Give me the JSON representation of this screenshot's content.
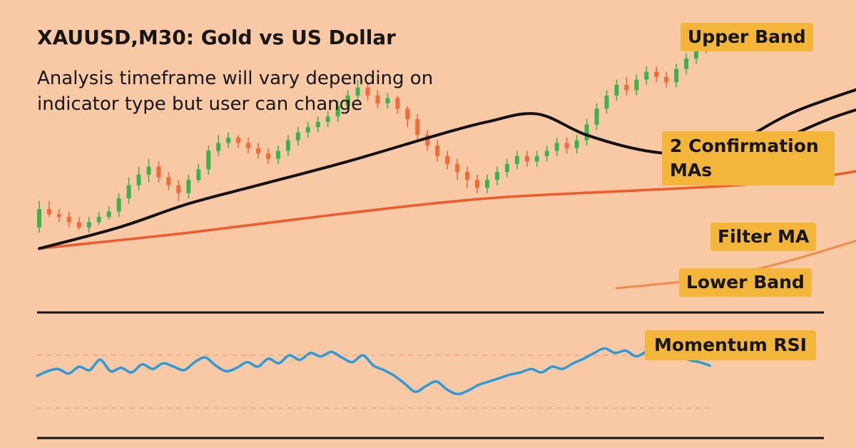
{
  "header": {
    "title": "XAUUSD,M30: Gold vs US Dollar",
    "subtitle": "Analysis timeframe will vary depending on indicator type but user can change"
  },
  "labels": {
    "upper_band": "Upper Band",
    "confirmation_mas": "2 Confirmation MAs",
    "filter_ma": "Filter MA",
    "lower_band": "Lower Band",
    "momentum_rsi": "Momentum RSI"
  },
  "colors": {
    "background": "#f9c9a6",
    "bull": "#3bb34a",
    "bear": "#f26a35",
    "ma": "#111111",
    "filter": "#ef5a2a",
    "lower_band": "#f08a45",
    "rsi": "#2f9ad8",
    "tag": "#f4b63a"
  },
  "chart_data": [
    {
      "type": "candlestick",
      "title": "XAUUSD,M30: Gold vs US Dollar",
      "ylim": [
        0,
        100
      ],
      "candles": [
        [
          26,
          33,
          24,
          36
        ],
        [
          33,
          31,
          30,
          36
        ],
        [
          31,
          30,
          28,
          33
        ],
        [
          30,
          28,
          26,
          32
        ],
        [
          28,
          26,
          25,
          30
        ],
        [
          26,
          28,
          24,
          30
        ],
        [
          28,
          30,
          27,
          32
        ],
        [
          30,
          32,
          29,
          34
        ],
        [
          32,
          37,
          30,
          39
        ],
        [
          37,
          42,
          35,
          45
        ],
        [
          42,
          46,
          40,
          49
        ],
        [
          46,
          49,
          43,
          52
        ],
        [
          49,
          45,
          43,
          51
        ],
        [
          45,
          42,
          40,
          47
        ],
        [
          42,
          39,
          36,
          44
        ],
        [
          39,
          44,
          37,
          46
        ],
        [
          44,
          48,
          43,
          50
        ],
        [
          48,
          55,
          46,
          57
        ],
        [
          55,
          58,
          53,
          61
        ],
        [
          58,
          60,
          56,
          62
        ],
        [
          60,
          58,
          56,
          61
        ],
        [
          58,
          56,
          54,
          60
        ],
        [
          56,
          54,
          52,
          58
        ],
        [
          54,
          52,
          50,
          56
        ],
        [
          52,
          55,
          50,
          57
        ],
        [
          55,
          59,
          53,
          61
        ],
        [
          59,
          62,
          57,
          64
        ],
        [
          62,
          64,
          60,
          66
        ],
        [
          64,
          66,
          62,
          68
        ],
        [
          66,
          68,
          64,
          70
        ],
        [
          68,
          72,
          66,
          74
        ],
        [
          72,
          76,
          70,
          78
        ],
        [
          76,
          79,
          74,
          82
        ],
        [
          79,
          76,
          74,
          81
        ],
        [
          76,
          73,
          71,
          78
        ],
        [
          73,
          75,
          71,
          77
        ],
        [
          75,
          71,
          69,
          76
        ],
        [
          71,
          67,
          64,
          72
        ],
        [
          67,
          61,
          59,
          69
        ],
        [
          61,
          57,
          55,
          63
        ],
        [
          57,
          53,
          51,
          59
        ],
        [
          53,
          50,
          48,
          55
        ],
        [
          50,
          47,
          44,
          52
        ],
        [
          47,
          44,
          41,
          49
        ],
        [
          44,
          41,
          39,
          46
        ],
        [
          41,
          44,
          39,
          46
        ],
        [
          44,
          47,
          42,
          49
        ],
        [
          47,
          50,
          45,
          52
        ],
        [
          50,
          53,
          48,
          55
        ],
        [
          53,
          51,
          49,
          55
        ],
        [
          51,
          53,
          49,
          55
        ],
        [
          53,
          55,
          51,
          57
        ],
        [
          55,
          58,
          53,
          60
        ],
        [
          58,
          56,
          54,
          60
        ],
        [
          56,
          59,
          54,
          61
        ],
        [
          59,
          65,
          57,
          67
        ],
        [
          65,
          71,
          63,
          73
        ],
        [
          71,
          76,
          69,
          78
        ],
        [
          76,
          80,
          74,
          82
        ],
        [
          80,
          78,
          76,
          83
        ],
        [
          78,
          82,
          76,
          84
        ],
        [
          82,
          85,
          80,
          87
        ],
        [
          85,
          83,
          81,
          87
        ],
        [
          83,
          81,
          79,
          85
        ],
        [
          81,
          86,
          79,
          88
        ],
        [
          86,
          90,
          84,
          92
        ],
        [
          90,
          94,
          88,
          96
        ],
        [
          94,
          97,
          92,
          99
        ]
      ]
    },
    {
      "type": "line",
      "series": [
        {
          "role": "confirmation-ma-1",
          "values": [
            [
              0,
              18
            ],
            [
              8,
              26
            ],
            [
              15,
              35
            ],
            [
              22,
              42
            ],
            [
              31,
              51
            ],
            [
              40,
              61
            ],
            [
              45,
              66
            ],
            [
              50,
              69
            ],
            [
              55,
              61
            ],
            [
              61,
              55
            ],
            [
              66,
              54
            ],
            [
              70,
              58
            ],
            [
              76,
              70
            ],
            [
              85,
              82
            ],
            [
              93,
              93
            ]
          ]
        },
        {
          "role": "confirmation-ma-2",
          "values": [
            [
              66,
              47
            ],
            [
              72,
              55
            ],
            [
              80,
              68
            ],
            [
              88,
              77
            ],
            [
              93,
              84
            ]
          ]
        },
        {
          "role": "filter-ma",
          "values": [
            [
              0,
              18
            ],
            [
              15,
              24
            ],
            [
              30,
              31
            ],
            [
              45,
              37
            ],
            [
              60,
              40
            ],
            [
              70,
              42
            ],
            [
              80,
              46
            ],
            [
              88,
              52
            ],
            [
              93,
              58
            ]
          ]
        },
        {
          "role": "lower-band",
          "values": [
            [
              58,
              3
            ],
            [
              68,
              7
            ],
            [
              75,
              13
            ],
            [
              83,
              22
            ],
            [
              90,
              30
            ],
            [
              93,
              34
            ]
          ]
        }
      ]
    },
    {
      "type": "line",
      "title": "Momentum RSI",
      "ylim": [
        0,
        100
      ],
      "series": [
        {
          "role": "rsi",
          "values": [
            52,
            56,
            58,
            54,
            60,
            57,
            66,
            56,
            59,
            55,
            62,
            58,
            63,
            60,
            57,
            64,
            68,
            61,
            56,
            59,
            64,
            60,
            67,
            63,
            70,
            66,
            72,
            69,
            73,
            68,
            64,
            70,
            61,
            57,
            52,
            45,
            38,
            43,
            47,
            40,
            36,
            39,
            44,
            47,
            50,
            53,
            55,
            58,
            55,
            60,
            58,
            63,
            67,
            72,
            76,
            72,
            74,
            69,
            73,
            71,
            74,
            72,
            66,
            64,
            61
          ]
        }
      ]
    }
  ]
}
